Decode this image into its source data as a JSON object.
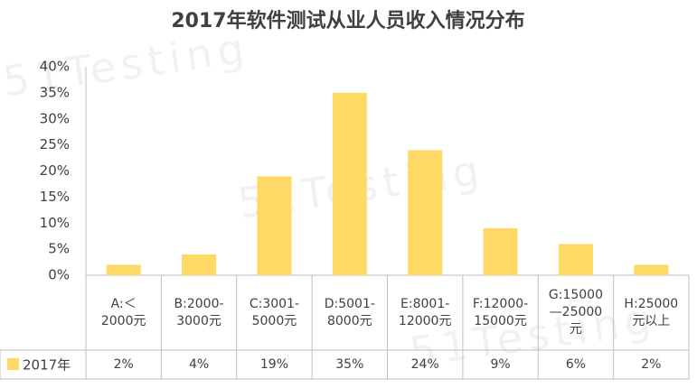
{
  "chart_data": {
    "type": "bar",
    "title": "2017年软件测试从业人员收入情况分布",
    "watermark": "51Testing",
    "categories": [
      "A:＜\n2000元",
      "B:2000-\n3000元",
      "C:3001-\n5000元",
      "D:5001-\n8000元",
      "E:8001-\n12000元",
      "F:12000-\n15000元",
      "G:15000\n—25000\n元",
      "H:25000\n元以上"
    ],
    "series": [
      {
        "name": "2017年",
        "color": "#ffd966",
        "values": [
          2,
          4,
          19,
          35,
          24,
          9,
          6,
          2
        ],
        "value_labels": [
          "2%",
          "4%",
          "19%",
          "35%",
          "24%",
          "9%",
          "6%",
          "2%"
        ]
      }
    ],
    "ylim": [
      0,
      40
    ],
    "yticks": [
      {
        "value": 0,
        "label": "0%"
      },
      {
        "value": 5,
        "label": "5%"
      },
      {
        "value": 10,
        "label": "10%"
      },
      {
        "value": 15,
        "label": "15%"
      },
      {
        "value": 20,
        "label": "20%"
      },
      {
        "value": 25,
        "label": "25%"
      },
      {
        "value": 30,
        "label": "30%"
      },
      {
        "value": 35,
        "label": "35%"
      },
      {
        "value": 40,
        "label": "40%"
      }
    ],
    "grid": false,
    "data_table": true
  }
}
